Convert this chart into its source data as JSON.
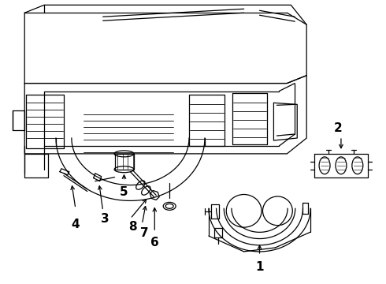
{
  "bg_color": "#ffffff",
  "line_color": "#000000",
  "figsize": [
    4.9,
    3.6
  ],
  "dpi": 100,
  "label_fontsize": 11,
  "label_fontweight": "bold"
}
